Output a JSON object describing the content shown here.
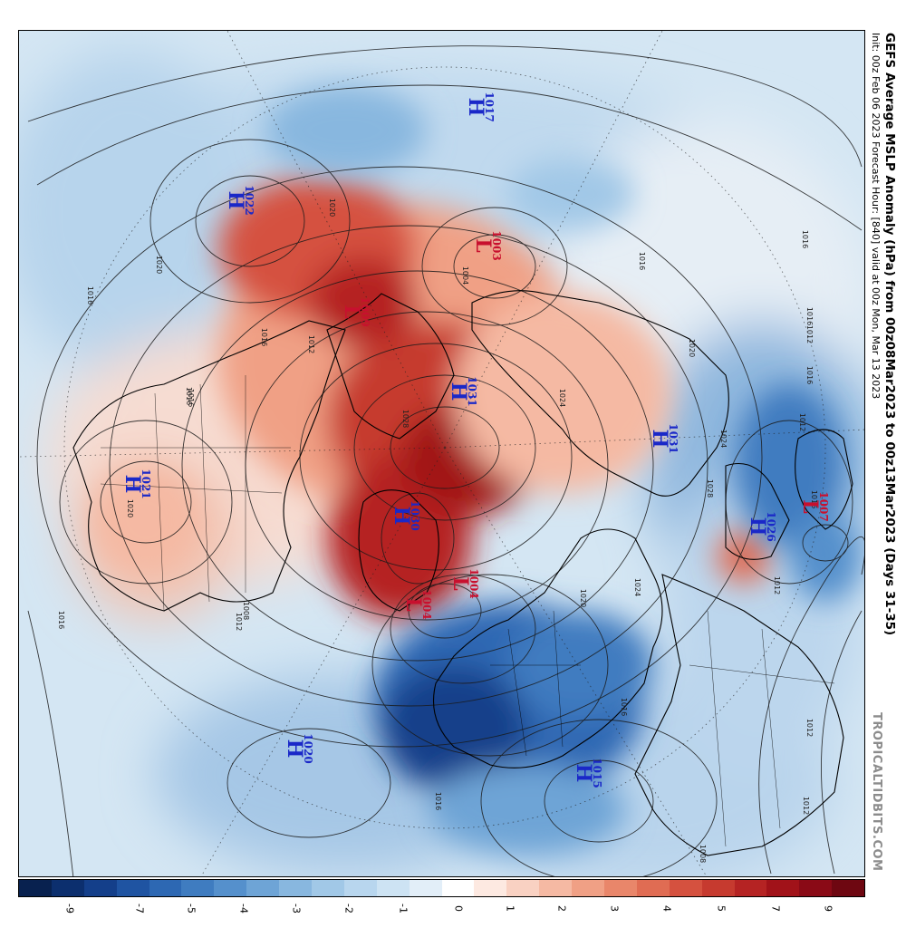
{
  "title": "GEFS Average MSLP Anomaly (hPa) from 00z08Mar2023 to 00z13Mar2023 (Days 31-35)",
  "subtitle": "Init: 00z Feb 06 2023   Forecast Hour: [840]   valid at 00z Mon, Mar 13 2023",
  "watermark": "TROPICALTIDBITS.COM",
  "colorbar": {
    "colors": [
      "#08214f",
      "#0c2f6e",
      "#143f8a",
      "#1f54a2",
      "#2d68b3",
      "#3f7cc0",
      "#5590cc",
      "#6ea4d6",
      "#88b7df",
      "#a1c8e7",
      "#b8d6ee",
      "#cde3f3",
      "#e2eef8",
      "#ffffff",
      "#fde9e1",
      "#f9d1c2",
      "#f5b9a3",
      "#f0a085",
      "#e9866a",
      "#e06c53",
      "#d5513f",
      "#c63a2f",
      "#b52323",
      "#a11219",
      "#8a0a16",
      "#6e0711"
    ],
    "ticks": [
      "-9",
      "-7",
      "-5",
      "-4",
      "-3",
      "-2",
      "-1",
      "0",
      "1",
      "2",
      "3",
      "4",
      "5",
      "7",
      "9"
    ]
  },
  "pressure_centers": [
    {
      "type": "H",
      "value": "1017"
    },
    {
      "type": "H",
      "value": "1022"
    },
    {
      "type": "L",
      "value": "1003"
    },
    {
      "type": "L",
      "value": "1009"
    },
    {
      "type": "H",
      "value": "1031"
    },
    {
      "type": "H",
      "value": "1031"
    },
    {
      "type": "H",
      "value": "1030"
    },
    {
      "type": "H",
      "value": "1021"
    },
    {
      "type": "H",
      "value": "1026"
    },
    {
      "type": "L",
      "value": "1007"
    },
    {
      "type": "L",
      "value": "1004"
    },
    {
      "type": "L",
      "value": "1004"
    },
    {
      "type": "H",
      "value": "1020"
    },
    {
      "type": "H",
      "value": "1015"
    }
  ],
  "isobar_labels": [
    "1020",
    "1020",
    "1016",
    "1016",
    "1012",
    "1004",
    "1016",
    "1016",
    "1020",
    "1024",
    "1028",
    "1024",
    "1020",
    "1016",
    "1012",
    "1012",
    "1016",
    "1024",
    "1028",
    "1016",
    "1012",
    "1008",
    "1016",
    "1012",
    "1016",
    "1016",
    "1012",
    "1008",
    "1020",
    "1016",
    "1012",
    "1016"
  ],
  "colors": {
    "high": "#1a28c8",
    "low": "#c8102e"
  }
}
